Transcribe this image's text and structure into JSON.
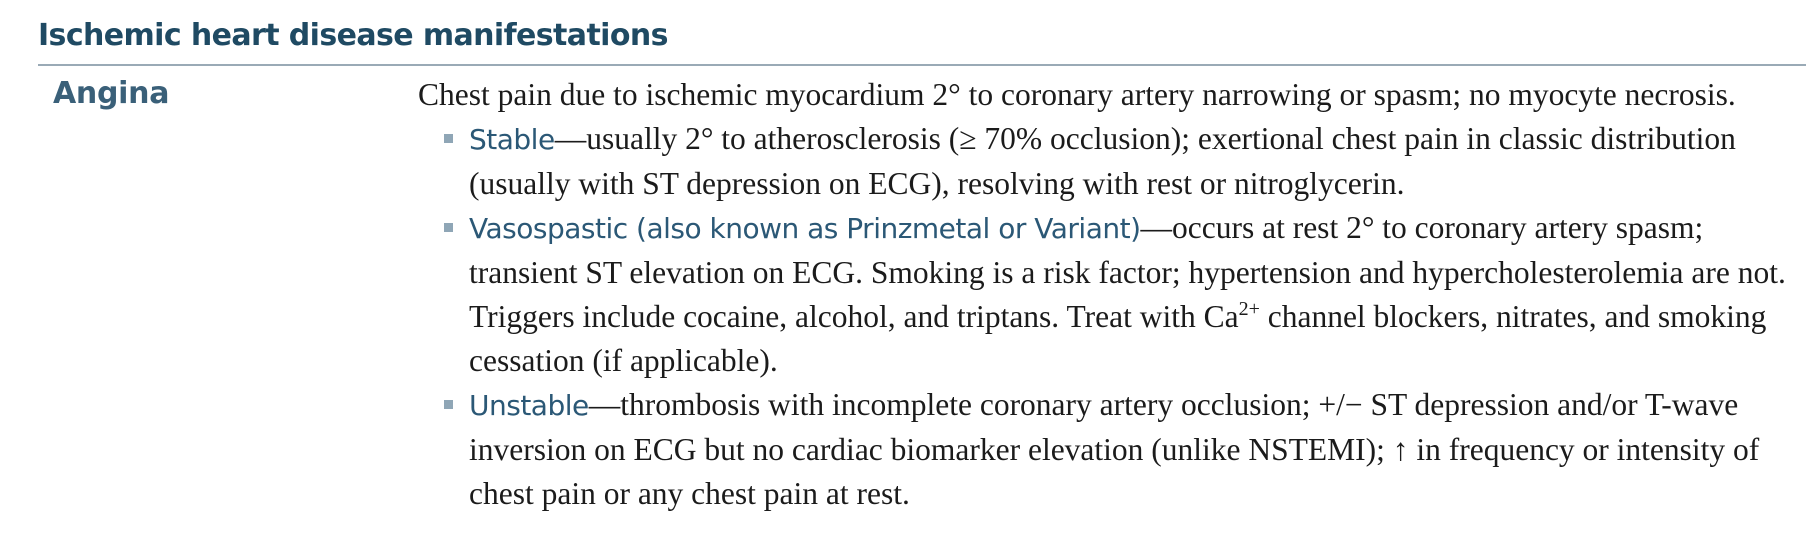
{
  "section": {
    "title": "Ischemic heart disease manifestations"
  },
  "angina": {
    "label": "Angina",
    "definition": "Chest pain due to ischemic myocardium 2° to coronary artery narrowing or spasm; no myocyte necrosis.",
    "bullets": [
      {
        "term": "Stable",
        "text": "—usually 2° to atherosclerosis (≥ 70% occlusion); exertional chest pain in classic distribution (usually with ST depression on ECG), resolving with rest or nitroglycerin."
      },
      {
        "term": "Vasospastic (also known as Prinzmetal or Variant)",
        "text": "—occurs at rest 2° to coronary artery spasm; transient ST elevation on ECG. Smoking is a risk factor; hypertension and hypercholesterolemia are not. Triggers include cocaine, alcohol, and triptans. Treat with Ca",
        "superscript": "2+",
        "text_after": " channel blockers, nitrates, and smoking cessation (if applicable)."
      },
      {
        "term": "Unstable",
        "text": "—thrombosis with incomplete coronary artery occlusion; +/− ST depression and/or T-wave inversion on ECG but no cardiac biomarker elevation (unlike NSTEMI); ↑ in frequency or intensity of chest pain or any chest pain at rest."
      }
    ]
  },
  "colors": {
    "heading": "#1f4a63",
    "label": "#3a6079",
    "term": "#2b5876",
    "bullet": "#8fa6b6",
    "rule": "#9aaab6",
    "body_text": "#1b1b1b"
  }
}
